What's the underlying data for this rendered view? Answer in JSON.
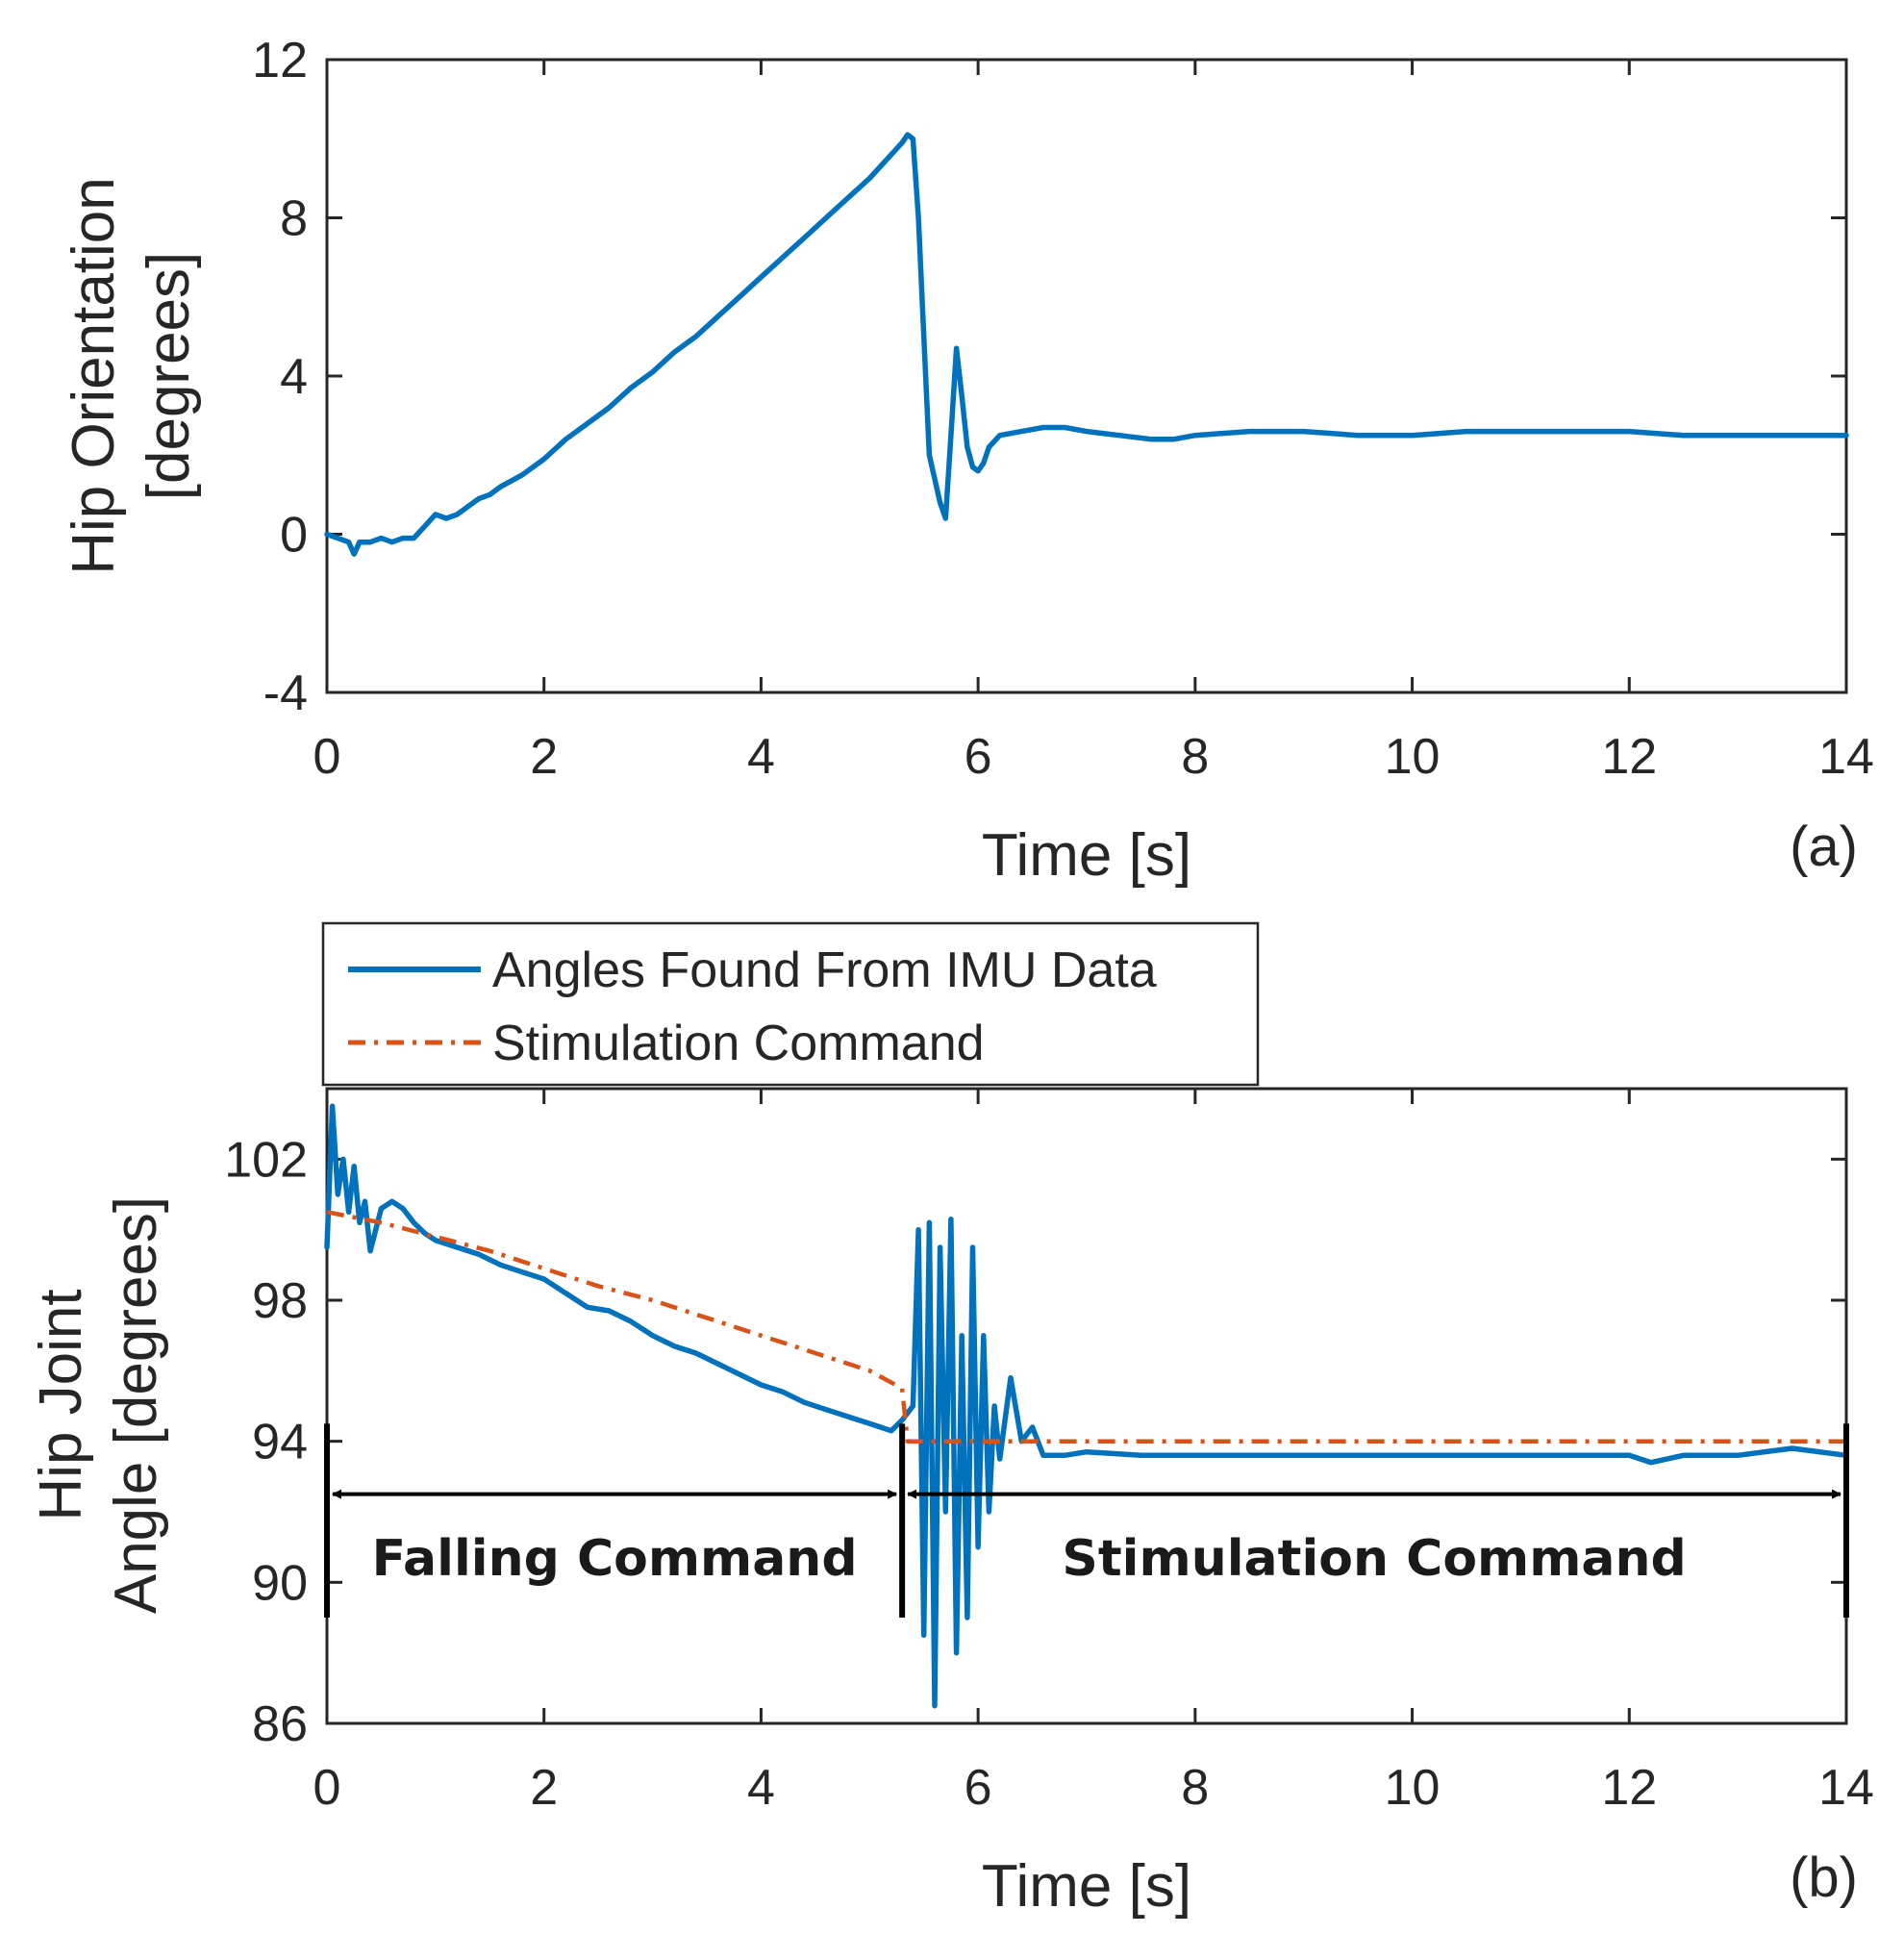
{
  "chart_data": [
    {
      "type": "line",
      "panel_label": "(a)",
      "xlabel": "Time [s]",
      "ylabel_lines": [
        "Hip Orientation",
        "[degrees]"
      ],
      "xlim": [
        0,
        14
      ],
      "ylim": [
        -4,
        12
      ],
      "xticks": [
        0,
        2,
        4,
        6,
        8,
        10,
        12,
        14
      ],
      "yticks": [
        -4,
        0,
        4,
        8,
        12
      ],
      "grid": false,
      "series": [
        {
          "name": "Hip Orientation",
          "color": "#0072BD",
          "x": [
            0,
            0.1,
            0.2,
            0.25,
            0.3,
            0.4,
            0.5,
            0.6,
            0.7,
            0.8,
            0.9,
            1.0,
            1.1,
            1.2,
            1.3,
            1.4,
            1.5,
            1.6,
            1.8,
            2.0,
            2.2,
            2.4,
            2.6,
            2.8,
            3.0,
            3.2,
            3.4,
            3.6,
            3.8,
            4.0,
            4.2,
            4.4,
            4.6,
            4.8,
            5.0,
            5.2,
            5.3,
            5.35,
            5.4,
            5.45,
            5.5,
            5.55,
            5.6,
            5.65,
            5.7,
            5.75,
            5.8,
            5.85,
            5.9,
            5.95,
            6.0,
            6.05,
            6.1,
            6.2,
            6.4,
            6.6,
            6.8,
            7.0,
            7.3,
            7.6,
            7.8,
            8.0,
            8.5,
            9.0,
            9.5,
            10.0,
            10.5,
            11.0,
            11.5,
            12.0,
            12.5,
            13.0,
            13.5,
            14.0
          ],
          "y": [
            0.0,
            -0.1,
            -0.2,
            -0.5,
            -0.2,
            -0.2,
            -0.1,
            -0.2,
            -0.1,
            -0.1,
            0.2,
            0.5,
            0.4,
            0.5,
            0.7,
            0.9,
            1.0,
            1.2,
            1.5,
            1.9,
            2.4,
            2.8,
            3.2,
            3.7,
            4.1,
            4.6,
            5.0,
            5.5,
            6.0,
            6.5,
            7.0,
            7.5,
            8.0,
            8.5,
            9.0,
            9.6,
            9.9,
            10.1,
            10.0,
            8.0,
            5.0,
            2.0,
            1.4,
            0.8,
            0.4,
            2.5,
            4.7,
            3.5,
            2.2,
            1.7,
            1.6,
            1.8,
            2.2,
            2.5,
            2.6,
            2.7,
            2.7,
            2.6,
            2.5,
            2.4,
            2.4,
            2.5,
            2.6,
            2.6,
            2.5,
            2.5,
            2.6,
            2.6,
            2.6,
            2.6,
            2.5,
            2.5,
            2.5,
            2.5
          ]
        }
      ]
    },
    {
      "type": "line",
      "panel_label": "(b)",
      "xlabel": "Time [s]",
      "ylabel_lines": [
        "Hip Joint",
        "Angle [degrees]"
      ],
      "xlim": [
        0,
        14
      ],
      "ylim": [
        86,
        104
      ],
      "xticks": [
        0,
        2,
        4,
        6,
        8,
        10,
        12,
        14
      ],
      "yticks": [
        86,
        90,
        94,
        98,
        102
      ],
      "grid": false,
      "legend": {
        "position": "above-top-left",
        "entries": [
          "Angles Found From IMU Data",
          "Stimulation Command"
        ]
      },
      "series": [
        {
          "name": "Angles Found From IMU Data",
          "color": "#0072BD",
          "style": "solid",
          "x": [
            0,
            0.05,
            0.1,
            0.15,
            0.2,
            0.25,
            0.3,
            0.35,
            0.4,
            0.5,
            0.6,
            0.7,
            0.8,
            0.9,
            1.0,
            1.2,
            1.4,
            1.6,
            1.8,
            2.0,
            2.2,
            2.4,
            2.6,
            2.8,
            3.0,
            3.2,
            3.4,
            3.6,
            3.8,
            4.0,
            4.2,
            4.4,
            4.6,
            4.8,
            5.0,
            5.2,
            5.3,
            5.4,
            5.45,
            5.5,
            5.55,
            5.6,
            5.65,
            5.7,
            5.75,
            5.8,
            5.85,
            5.9,
            5.95,
            6.0,
            6.05,
            6.1,
            6.15,
            6.2,
            6.3,
            6.4,
            6.5,
            6.6,
            6.8,
            7.0,
            7.5,
            8.0,
            8.5,
            9.0,
            9.5,
            10.0,
            10.5,
            11.0,
            11.5,
            12.0,
            12.2,
            12.5,
            13.0,
            13.5,
            14.0
          ],
          "y": [
            99.5,
            103.5,
            101.0,
            102.0,
            100.5,
            101.8,
            100.2,
            100.8,
            99.4,
            100.6,
            100.8,
            100.6,
            100.2,
            99.9,
            99.7,
            99.5,
            99.3,
            99.0,
            98.8,
            98.6,
            98.2,
            97.8,
            97.7,
            97.4,
            97.0,
            96.7,
            96.5,
            96.2,
            95.9,
            95.6,
            95.4,
            95.1,
            94.9,
            94.7,
            94.5,
            94.3,
            94.6,
            95.0,
            100.0,
            88.5,
            100.2,
            86.5,
            99.5,
            92.0,
            100.3,
            88.0,
            97.0,
            89.0,
            99.5,
            91.0,
            97.0,
            92.0,
            95.0,
            93.5,
            95.8,
            94.0,
            94.4,
            93.6,
            93.6,
            93.7,
            93.6,
            93.6,
            93.6,
            93.6,
            93.6,
            93.6,
            93.6,
            93.6,
            93.6,
            93.6,
            93.4,
            93.6,
            93.6,
            93.8,
            93.6
          ]
        },
        {
          "name": "Stimulation Command",
          "color": "#D95319",
          "style": "dash-dot",
          "x": [
            0,
            0.5,
            1.0,
            1.5,
            2.0,
            2.5,
            3.0,
            3.5,
            4.0,
            4.5,
            5.0,
            5.3,
            5.35,
            6.0,
            8.0,
            10.0,
            12.0,
            14.0
          ],
          "y": [
            100.5,
            100.2,
            99.8,
            99.4,
            98.9,
            98.4,
            98.0,
            97.5,
            97.0,
            96.5,
            96.0,
            95.5,
            94.0,
            94.0,
            94.0,
            94.0,
            94.0,
            94.0
          ]
        }
      ],
      "annotations": {
        "falling_label": "Falling Command",
        "stimulation_label": "Stimulation Command",
        "divider_times": [
          0,
          5.3,
          14
        ],
        "divider_range": [
          89,
          94.5
        ],
        "arrow_level": 92.5,
        "label_level": 90.2
      }
    }
  ]
}
